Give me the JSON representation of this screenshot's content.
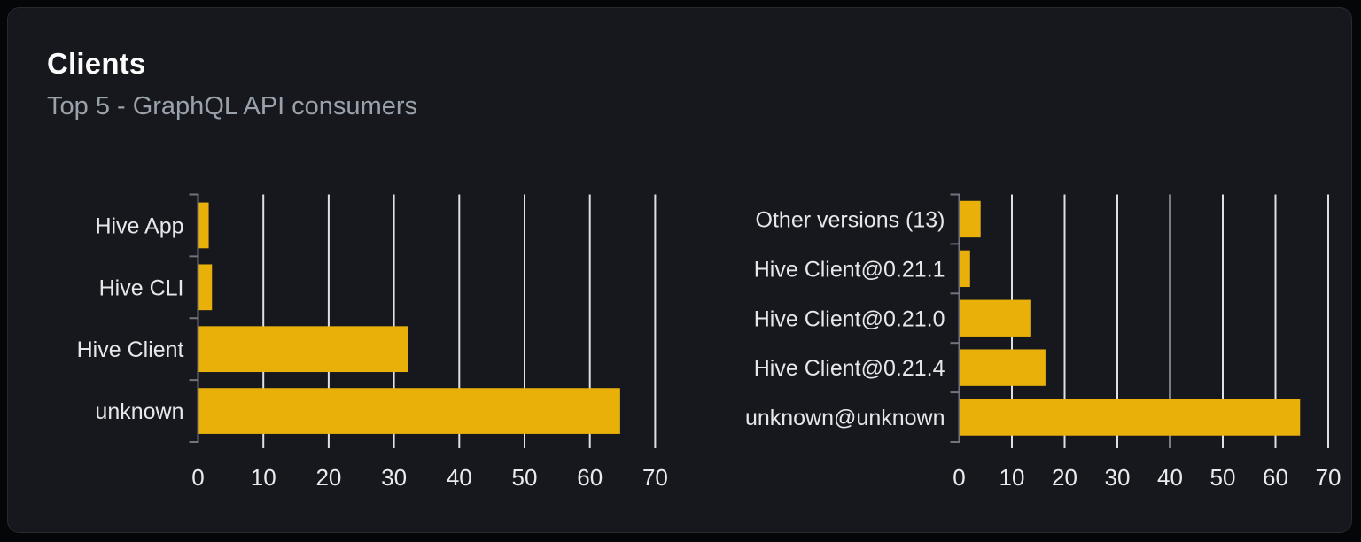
{
  "card": {
    "title": "Clients",
    "subtitle": "Top 5 - GraphQL API consumers"
  },
  "colors": {
    "bar": "#e9b009",
    "gridline": "#dce1e8",
    "axis": "#70757f",
    "category_label": "#e5e7ea",
    "tick_label": "#e8eaed",
    "title": "#fbfbfc",
    "subtitle": "#9aa1ab",
    "card_background": "#16181d",
    "card_border": "#262a31",
    "page_background": "#050608"
  },
  "chart_data": [
    {
      "type": "bar",
      "orientation": "horizontal",
      "name": "clients-by-name",
      "title": "",
      "categories": [
        "Hive App",
        "Hive CLI",
        "Hive Client",
        "unknown"
      ],
      "values": [
        1.5,
        2,
        32,
        64.5
      ],
      "xlabel": "",
      "ylabel": "",
      "xlim": [
        0,
        70
      ],
      "xticks": [
        0,
        10,
        20,
        30,
        40,
        50,
        60,
        70
      ],
      "grid": true,
      "legend": false
    },
    {
      "type": "bar",
      "orientation": "horizontal",
      "name": "clients-by-version",
      "title": "",
      "categories": [
        "Other versions (13)",
        "Hive Client@0.21.1",
        "Hive Client@0.21.0",
        "Hive Client@0.21.4",
        "unknown@unknown"
      ],
      "values": [
        3.9,
        1.9,
        13.5,
        16.2,
        64.5
      ],
      "xlabel": "",
      "ylabel": "",
      "xlim": [
        0,
        70
      ],
      "xticks": [
        0,
        10,
        20,
        30,
        40,
        50,
        60,
        70
      ],
      "grid": true,
      "legend": false
    }
  ]
}
